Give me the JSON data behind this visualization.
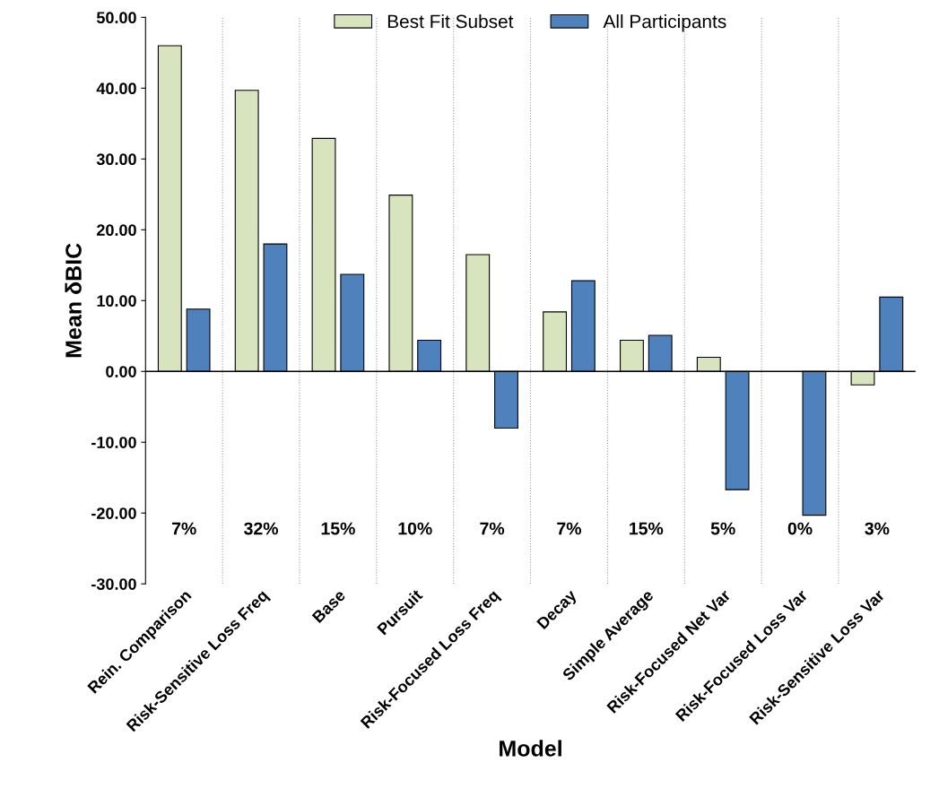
{
  "chart_data": {
    "type": "bar",
    "xlabel": "Model",
    "ylabel": "Mean δBIC",
    "categories": [
      "Rein. Comparison",
      "Risk-Sensitive Loss Freq",
      "Base",
      "Pursuit",
      "Risk-Focused Loss Freq",
      "Decay",
      "Simple Average",
      "Risk-Focused Net Var",
      "Risk-Focused Loss Var",
      "Risk-Sensitive Loss Var"
    ],
    "series": [
      {
        "name": "Best Fit Subset",
        "color": "#d7e4bd",
        "values": [
          46.0,
          39.7,
          32.9,
          24.9,
          16.5,
          8.4,
          4.4,
          2.0,
          null,
          -1.9
        ]
      },
      {
        "name": "All Participants",
        "color": "#4f81bd",
        "values": [
          8.8,
          18.0,
          13.7,
          4.4,
          -8.0,
          12.8,
          5.1,
          -16.7,
          -20.3,
          10.5
        ]
      }
    ],
    "ylim": [
      -30,
      50
    ],
    "yticks": [
      {
        "value": -30,
        "label": "-30.00"
      },
      {
        "value": -20,
        "label": "-20.00"
      },
      {
        "value": -10,
        "label": "-10.00"
      },
      {
        "value": 0,
        "label": "0.00"
      },
      {
        "value": 10,
        "label": "10.00"
      },
      {
        "value": 20,
        "label": "20.00"
      },
      {
        "value": 30,
        "label": "30.00"
      },
      {
        "value": 40,
        "label": "40.00"
      },
      {
        "value": 50,
        "label": "50.00"
      }
    ],
    "annotations": [
      "7%",
      "32%",
      "15%",
      "10%",
      "7%",
      "7%",
      "15%",
      "5%",
      "0%",
      "3%"
    ],
    "grid": "x",
    "legend": "top"
  }
}
